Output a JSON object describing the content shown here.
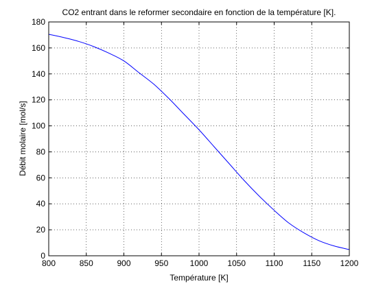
{
  "chart_data": {
    "type": "line",
    "title": "CO2 entrant dans le reformer secondaire en fonction de la température [K].",
    "xlabel": "Température [K]",
    "ylabel": "Débit molaire [mol/s]",
    "xlim": [
      800,
      1200
    ],
    "ylim": [
      0,
      180
    ],
    "xticks": [
      800,
      850,
      900,
      950,
      1000,
      1050,
      1100,
      1150,
      1200
    ],
    "yticks": [
      0,
      20,
      40,
      60,
      80,
      100,
      120,
      140,
      160,
      180
    ],
    "grid": "dotted",
    "line_color": "#0000ff",
    "series": [
      {
        "x": [
          800,
          820,
          840,
          860,
          880,
          900,
          920,
          940,
          960,
          980,
          1000,
          1020,
          1040,
          1060,
          1080,
          1100,
          1120,
          1140,
          1160,
          1180,
          1200
        ],
        "y": [
          170.5,
          168,
          165,
          161,
          156,
          150,
          141,
          132,
          121,
          109,
          97,
          84,
          71,
          58,
          46,
          35,
          25,
          17.5,
          11.5,
          7.5,
          4.8
        ]
      }
    ]
  }
}
